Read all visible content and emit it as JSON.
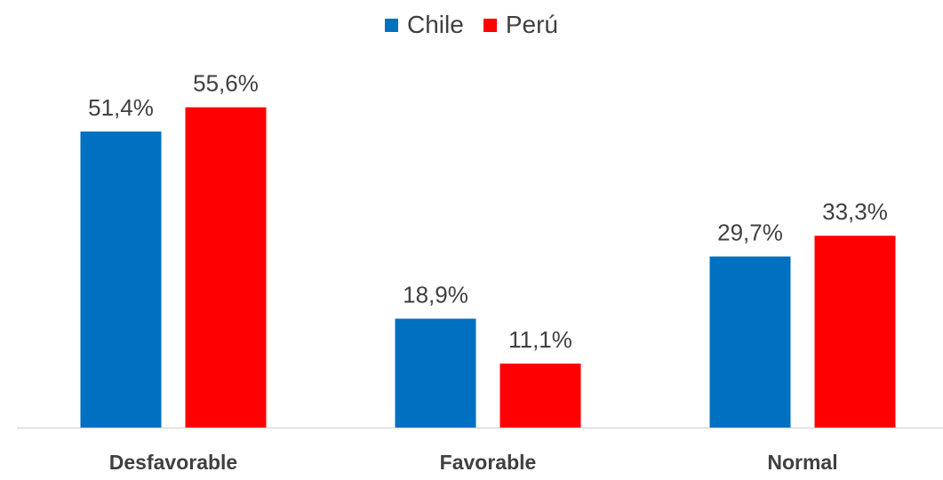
{
  "chart_data": {
    "type": "bar",
    "categories": [
      "Desfavorable",
      "Favorable",
      "Normal"
    ],
    "series": [
      {
        "name": "Chile",
        "color": "#0070C0",
        "values": [
          51.4,
          18.9,
          29.7
        ],
        "labels": [
          "51,4%",
          "18,9%",
          "29,7%"
        ]
      },
      {
        "name": "Perú",
        "color": "#FF0000",
        "values": [
          55.6,
          11.1,
          33.3
        ],
        "labels": [
          "55,6%",
          "11,1%",
          "33,3%"
        ]
      }
    ],
    "title": "",
    "xlabel": "",
    "ylabel": "",
    "ylim": [
      0,
      60
    ],
    "legend_position": "top-center",
    "grid": false
  }
}
